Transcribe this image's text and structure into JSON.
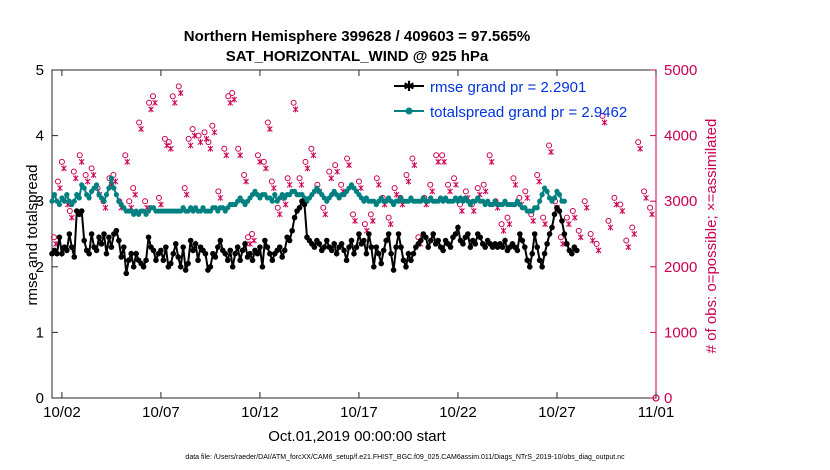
{
  "chart_data": {
    "type": "line",
    "title_line1": "Northern Hemisphere 399628 / 409603 = 97.565%",
    "title_line2": "SAT_HORIZONTAL_WIND @ 925 hPa",
    "xlabel": "Oct.01,2019 00:00:00 start",
    "ylabel_left": "rmse and totalspread",
    "ylabel_right": "# of obs: o=possible; ×=assimilated",
    "xlim": [
      1.5,
      32
    ],
    "ylim_left": [
      0,
      5
    ],
    "ylim_right": [
      0,
      5000
    ],
    "x_ticks": [
      {
        "value": 2,
        "label": "10/02"
      },
      {
        "value": 7,
        "label": "10/07"
      },
      {
        "value": 12,
        "label": "10/12"
      },
      {
        "value": 17,
        "label": "10/17"
      },
      {
        "value": 22,
        "label": "10/22"
      },
      {
        "value": 27,
        "label": "10/27"
      },
      {
        "value": 32,
        "label": "11/01"
      }
    ],
    "y_ticks_left": [
      "0",
      "1",
      "2",
      "3",
      "4",
      "5"
    ],
    "y_ticks_right": [
      "0",
      "1000",
      "2000",
      "3000",
      "4000",
      "5000"
    ],
    "legend": {
      "rmse": "rmse grand pr = 2.2901",
      "spread": "totalspread grand pr = 2.9462"
    },
    "colors": {
      "rmse": "#000000",
      "spread": "#008080",
      "obs": "#cc0052",
      "legend_text": "#0033dd"
    },
    "series": [
      {
        "name": "rmse",
        "axis": "left",
        "x_start": 1.5,
        "x_step": 0.125,
        "values": [
          2.2,
          2.25,
          2.2,
          2.45,
          2.2,
          2.3,
          2.25,
          2.5,
          2.3,
          2.15,
          2.85,
          2.8,
          2.85,
          2.4,
          2.25,
          2.2,
          2.5,
          2.3,
          2.25,
          2.45,
          2.35,
          2.5,
          2.2,
          2.45,
          2.3,
          2.5,
          2.55,
          2.4,
          2.15,
          2.3,
          1.9,
          2.1,
          2.2,
          2.0,
          2.2,
          2.1,
          2.05,
          2.0,
          2.1,
          2.45,
          2.3,
          2.25,
          2.1,
          2.2,
          2.25,
          2.1,
          2.3,
          2.0,
          2.05,
          2.2,
          2.35,
          2.15,
          2.0,
          2.3,
          1.95,
          2.05,
          2.4,
          2.25,
          2.35,
          2.1,
          2.3,
          2.25,
          2.2,
          1.95,
          2.0,
          2.2,
          2.15,
          2.3,
          2.4,
          2.25,
          2.2,
          2.1,
          2.25,
          2.0,
          2.2,
          2.3,
          2.1,
          2.25,
          2.35,
          2.15,
          2.2,
          2.1,
          2.25,
          2.2,
          2.3,
          2.0,
          2.4,
          2.3,
          2.2,
          2.1,
          2.2,
          2.25,
          2.3,
          2.15,
          2.25,
          2.45,
          2.4,
          2.55,
          2.75,
          2.85,
          2.9,
          3.0,
          2.95,
          2.45,
          2.4,
          2.35,
          2.3,
          2.4,
          2.35,
          2.25,
          2.3,
          2.4,
          2.3,
          2.25,
          2.35,
          2.2,
          2.3,
          2.35,
          2.25,
          2.1,
          2.3,
          2.4,
          2.2,
          2.3,
          2.5,
          2.35,
          2.4,
          2.2,
          2.5,
          2.3,
          2.0,
          2.3,
          2.2,
          2.05,
          2.25,
          2.4,
          2.5,
          2.2,
          1.95,
          2.3,
          2.5,
          2.3,
          2.1,
          2.0,
          2.2,
          2.1,
          2.2,
          2.3,
          2.35,
          2.4,
          2.5,
          2.45,
          2.3,
          2.4,
          2.5,
          2.35,
          2.4,
          2.3,
          2.25,
          2.4,
          2.35,
          2.3,
          2.45,
          2.5,
          2.6,
          2.4,
          2.35,
          2.45,
          2.5,
          2.3,
          2.4,
          2.35,
          2.5,
          2.45,
          2.35,
          2.3,
          2.4,
          2.35,
          2.3,
          2.35,
          2.3,
          2.35,
          2.3,
          2.4,
          2.25,
          2.3,
          2.35,
          2.3,
          2.25,
          2.5,
          2.4,
          2.3,
          2.1,
          2.0,
          2.2,
          2.5,
          2.3,
          2.1,
          2.0,
          2.2,
          2.35,
          2.5,
          2.6,
          2.8,
          2.9,
          2.85,
          2.7,
          2.5,
          2.35,
          2.25,
          2.2,
          2.3,
          2.25
        ]
      },
      {
        "name": "spread",
        "axis": "left",
        "x_start": 1.5,
        "x_step": 0.125,
        "values": [
          3.0,
          3.1,
          3.0,
          2.95,
          3.05,
          3.0,
          3.1,
          3.0,
          2.95,
          3.0,
          3.1,
          3.05,
          3.25,
          3.2,
          3.1,
          3.05,
          3.15,
          3.2,
          3.25,
          3.1,
          3.05,
          3.0,
          3.1,
          3.2,
          3.35,
          3.2,
          3.1,
          3.0,
          2.95,
          2.9,
          2.85,
          2.85,
          2.85,
          2.8,
          2.85,
          2.8,
          2.85,
          2.85,
          2.8,
          2.85,
          2.9,
          2.9,
          2.85,
          2.85,
          2.85,
          2.85,
          2.85,
          2.85,
          2.85,
          2.85,
          2.85,
          2.85,
          2.85,
          2.9,
          2.85,
          2.85,
          2.9,
          2.85,
          2.9,
          2.85,
          2.85,
          2.9,
          2.85,
          2.85,
          2.85,
          2.9,
          2.9,
          2.85,
          2.9,
          2.9,
          2.85,
          2.9,
          2.95,
          2.95,
          2.95,
          3.0,
          3.05,
          3.0,
          2.95,
          3.0,
          3.05,
          3.1,
          3.15,
          3.1,
          3.05,
          3.1,
          3.1,
          3.05,
          3.05,
          3.0,
          3.1,
          3.0,
          3.05,
          3.1,
          3.05,
          3.1,
          3.1,
          3.15,
          3.15,
          3.1,
          3.1,
          3.1,
          3.05,
          3.0,
          3.05,
          3.1,
          3.15,
          3.2,
          3.15,
          3.1,
          3.05,
          3.0,
          3.05,
          3.1,
          3.15,
          3.1,
          3.05,
          3.1,
          3.1,
          3.15,
          3.2,
          3.25,
          3.2,
          3.15,
          3.1,
          3.05,
          3.0,
          3.05,
          3.0,
          3.0,
          3.0,
          2.95,
          3.0,
          3.05,
          3.0,
          3.0,
          3.05,
          3.0,
          2.95,
          3.0,
          3.0,
          3.05,
          3.0,
          3.0,
          3.0,
          3.05,
          3.0,
          3.0,
          3.0,
          3.0,
          3.05,
          3.0,
          3.0,
          3.05,
          3.0,
          3.0,
          3.0,
          3.05,
          3.0,
          3.05,
          3.0,
          3.0,
          3.0,
          3.05,
          3.0,
          3.05,
          3.0,
          3.05,
          3.0,
          2.95,
          3.0,
          3.0,
          3.05,
          3.0,
          3.0,
          2.95,
          3.0,
          2.95,
          2.95,
          3.0,
          2.95,
          2.95,
          2.95,
          3.0,
          2.95,
          2.95,
          2.95,
          2.95,
          3.0,
          2.95,
          2.9,
          2.9,
          2.85,
          2.85,
          2.85,
          2.9,
          2.9,
          3.0,
          3.1,
          3.2,
          3.15,
          3.05,
          3.0,
          3.05,
          3.15,
          3.1,
          3.0,
          3.0
        ]
      },
      {
        "name": "obs possible",
        "axis": "right",
        "marker": "o",
        "x": [
          1.6,
          1.8,
          2.0,
          2.2,
          2.4,
          2.6,
          2.9,
          3.2,
          3.5,
          3.8,
          4.1,
          4.4,
          4.6,
          4.9,
          5.2,
          5.4,
          5.6,
          5.9,
          6.2,
          6.4,
          6.6,
          6.9,
          7.2,
          7.4,
          7.6,
          7.9,
          8.2,
          8.4,
          8.6,
          8.9,
          9.2,
          9.4,
          9.6,
          9.9,
          10.2,
          10.4,
          10.6,
          10.9,
          11.2,
          11.4,
          11.6,
          11.9,
          12.2,
          12.4,
          12.6,
          12.9,
          13.2,
          13.4,
          13.7,
          14.0,
          14.3,
          14.6,
          14.9,
          15.2,
          15.5,
          15.8,
          16.1,
          16.4,
          16.7,
          17.0,
          17.3,
          17.6,
          17.9,
          18.2,
          18.5,
          18.8,
          19.1,
          19.4,
          19.7,
          20.0,
          20.3,
          20.6,
          20.9,
          21.2,
          21.5,
          21.8,
          22.1,
          22.4,
          22.7,
          23.0,
          23.3,
          23.6,
          23.9,
          24.2,
          24.5,
          24.8,
          25.1,
          25.4,
          25.7,
          26.0,
          26.3,
          26.6,
          26.9,
          27.2,
          27.5,
          27.8,
          28.1,
          28.4,
          28.7,
          29.0,
          29.3,
          29.6,
          29.9,
          30.2,
          30.5,
          30.8,
          31.1,
          31.4,
          31.7
        ],
        "values": [
          2450,
          3300,
          3600,
          3050,
          2850,
          3450,
          3700,
          3400,
          3500,
          3200,
          3000,
          3350,
          3400,
          3000,
          3700,
          3000,
          3200,
          4200,
          3000,
          4500,
          4600,
          3050,
          3950,
          3900,
          4600,
          4750,
          3200,
          3950,
          4100,
          4000,
          4050,
          3900,
          4150,
          3150,
          3800,
          4600,
          4650,
          3800,
          3400,
          2450,
          2500,
          3700,
          3600,
          4200,
          3300,
          2900,
          3050,
          3350,
          4500,
          3350,
          3600,
          3800,
          3250,
          2900,
          3450,
          3550,
          3250,
          3650,
          2800,
          3300,
          2650,
          2800,
          3350,
          3050,
          2750,
          3200,
          3050,
          3400,
          3650,
          2450,
          3050,
          3250,
          3700,
          3700,
          3250,
          3350,
          2950,
          3150,
          2950,
          3200,
          3250,
          3700,
          3000,
          2650,
          2750,
          3350,
          3050,
          3150,
          2800,
          3400,
          2750,
          3850,
          3000,
          2450,
          2750,
          2850,
          2550,
          3000,
          2500,
          2350,
          4300,
          2700,
          3050,
          2950,
          2400,
          2600,
          3900,
          3150,
          2900
        ]
      },
      {
        "name": "obs assimilated",
        "axis": "right",
        "marker": "x",
        "x": [
          1.7,
          1.9,
          2.1,
          2.3,
          2.5,
          2.7,
          3.0,
          3.3,
          3.6,
          3.9,
          4.2,
          4.5,
          4.7,
          5.0,
          5.3,
          5.5,
          5.7,
          6.0,
          6.3,
          6.5,
          6.7,
          7.0,
          7.3,
          7.5,
          7.7,
          8.0,
          8.3,
          8.5,
          8.7,
          9.0,
          9.3,
          9.5,
          9.7,
          10.0,
          10.3,
          10.5,
          10.7,
          11.0,
          11.3,
          11.5,
          11.7,
          12.0,
          12.3,
          12.5,
          12.7,
          13.0,
          13.3,
          13.5,
          13.8,
          14.1,
          14.4,
          14.7,
          15.0,
          15.3,
          15.6,
          15.9,
          16.2,
          16.5,
          16.8,
          17.1,
          17.4,
          17.7,
          18.0,
          18.3,
          18.6,
          18.9,
          19.2,
          19.5,
          19.8,
          20.1,
          20.4,
          20.7,
          21.0,
          21.3,
          21.6,
          21.9,
          22.2,
          22.5,
          22.8,
          23.1,
          23.4,
          23.7,
          24.0,
          24.3,
          24.6,
          24.9,
          25.2,
          25.5,
          25.8,
          26.1,
          26.4,
          26.7,
          27.0,
          27.3,
          27.6,
          27.9,
          28.2,
          28.5,
          28.8,
          29.1,
          29.4,
          29.7,
          30.0,
          30.3,
          30.6,
          30.9,
          31.2,
          31.5,
          31.8
        ],
        "values": [
          2350,
          3200,
          3500,
          2950,
          2750,
          3350,
          3600,
          3300,
          3400,
          3100,
          2900,
          3250,
          3300,
          2900,
          3600,
          2900,
          3100,
          4100,
          2900,
          4400,
          4500,
          2950,
          3850,
          3800,
          4500,
          4650,
          3100,
          3850,
          4000,
          3900,
          3950,
          3800,
          4050,
          3050,
          3700,
          4500,
          4550,
          3700,
          3300,
          2350,
          2400,
          3600,
          3500,
          4100,
          3200,
          2800,
          2950,
          3250,
          4400,
          3250,
          3500,
          3700,
          3150,
          2800,
          3350,
          3450,
          3150,
          3550,
          2700,
          3200,
          2550,
          2700,
          3250,
          2950,
          2650,
          3100,
          2950,
          3300,
          3550,
          2350,
          2950,
          3150,
          3600,
          3600,
          3150,
          3250,
          2850,
          3050,
          2850,
          3100,
          3150,
          3600,
          2900,
          2550,
          2650,
          3250,
          2950,
          3050,
          2700,
          3300,
          2650,
          3750,
          2900,
          2350,
          2650,
          2750,
          2450,
          2900,
          2400,
          2250,
          4200,
          2600,
          2950,
          2850,
          2300,
          2500,
          3800,
          3050,
          2800
        ]
      }
    ],
    "end_marker": {
      "x": 32,
      "value": 0
    },
    "footer": "data file: /Users/raeder/DAI/ATM_forcXX/CAM6_setup/f.e21.FHIST_BGC.f09_025.CAM6assim.011/Diags_NTrS_2019-10/obs_diag_output.nc"
  }
}
